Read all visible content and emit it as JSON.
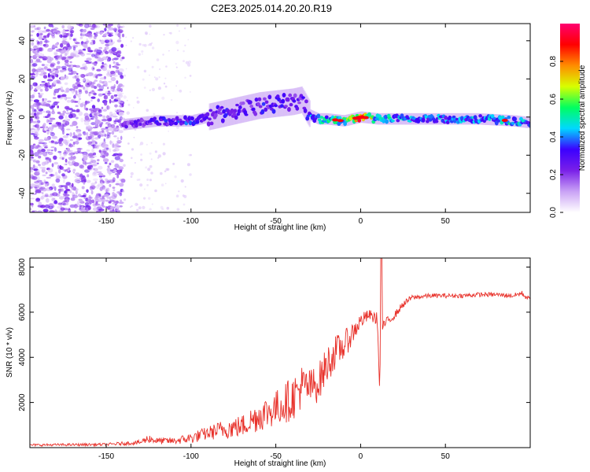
{
  "title": "C2E3.2025.014.20.20.R19",
  "chart_data": [
    {
      "type": "heatmap",
      "xlabel": "Height of straight line (km)",
      "ylabel": "Frequency (Hz)",
      "xlim": [
        -195,
        100
      ],
      "ylim": [
        -50,
        49
      ],
      "xticks": [
        -150,
        -100,
        -50,
        0,
        50
      ],
      "yticks": [
        -40,
        -20,
        0,
        20,
        40
      ],
      "noise_region_x": [
        -195,
        -140
      ],
      "ridge": {
        "x": [
          -140,
          -130,
          -120,
          -110,
          -100,
          -90,
          -80,
          -70,
          -60,
          -50,
          -40,
          -35,
          -30,
          -25,
          -20,
          -10,
          0,
          10,
          20,
          30,
          50,
          70,
          90,
          100
        ],
        "freq": [
          -4,
          -3,
          -2,
          -2,
          -2,
          0,
          2,
          4,
          6,
          7,
          8,
          9,
          1,
          -1,
          -1,
          -2,
          0,
          -1,
          -1,
          -1,
          -1,
          -1,
          -2,
          -3
        ],
        "peak_amplitude": [
          0.25,
          0.3,
          0.35,
          0.35,
          0.4,
          0.3,
          0.35,
          0.3,
          0.35,
          0.35,
          0.3,
          0.3,
          0.45,
          0.5,
          0.55,
          0.6,
          0.95,
          0.6,
          0.5,
          0.45,
          0.45,
          0.5,
          0.55,
          0.45
        ]
      },
      "grid": false,
      "colorbar": {
        "label": "Normalized spectral amplitude",
        "range": [
          0,
          1
        ],
        "ticks": [
          "0.0",
          "0.2",
          "0.4",
          "0.6",
          "0.8"
        ],
        "colors": [
          "#ffffff",
          "#c9a2f5",
          "#7a20e8",
          "#3b00ff",
          "#00d8ff",
          "#00ff60",
          "#d8ff00",
          "#ff8c00",
          "#ff0000",
          "#ff0070"
        ]
      }
    },
    {
      "type": "line",
      "xlabel": "Height of straight line (km)",
      "ylabel": "SNR (10 * v/v)",
      "xlim": [
        -195,
        100
      ],
      "ylim": [
        0,
        8400
      ],
      "xticks": [
        -150,
        -100,
        -50,
        0,
        50
      ],
      "yticks": [
        2000,
        4000,
        6000,
        8000
      ],
      "color": "#e8312a",
      "series": [
        {
          "envelope": {
            "x": [
              -195,
              -150,
              -130,
              -125,
              -120,
              -110,
              -100,
              -90,
              -80,
              -70,
              -60,
              -50,
              -40,
              -35,
              -30,
              -25,
              -20,
              -15,
              -10,
              -5,
              0,
              5,
              10,
              11,
              12,
              13,
              15,
              20,
              25,
              30,
              40,
              50,
              60,
              70,
              80,
              90,
              95,
              100
            ],
            "base": [
              100,
              120,
              200,
              350,
              250,
              250,
              350,
              550,
              700,
              800,
              1200,
              1500,
              1900,
              2400,
              2400,
              2600,
              3400,
              4000,
              4300,
              4900,
              5500,
              5800,
              5600,
              2700,
              3800,
              5300,
              5500,
              5800,
              6300,
              6600,
              6700,
              6700,
              6700,
              6750,
              6750,
              6700,
              6800,
              6500
            ],
            "amp": [
              100,
              120,
              200,
              400,
              300,
              300,
              500,
              600,
              900,
              1000,
              1400,
              1600,
              2000,
              2000,
              1700,
              1700,
              1700,
              1500,
              1300,
              1000,
              700,
              500,
              600,
              300,
              2600,
              400,
              400,
              350,
              300,
              250,
              200,
              200,
              200,
              200,
              200,
              200,
              250,
              250
            ]
          }
        }
      ]
    }
  ]
}
